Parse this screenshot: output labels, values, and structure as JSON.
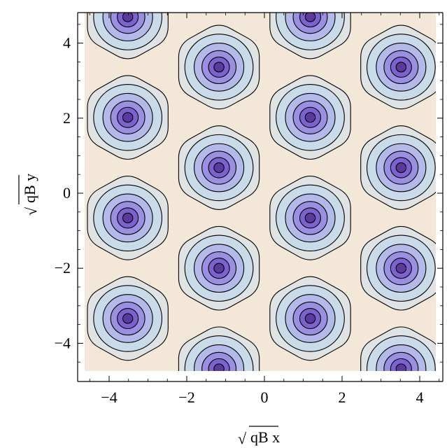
{
  "chart_data": {
    "type": "contour",
    "xlabel": "qB x",
    "ylabel": "qB y",
    "label_prefix_symbol": "√",
    "xlim": [
      -4.6,
      4.6
    ],
    "ylim": [
      -4.8,
      4.8
    ],
    "xticks": [
      -4,
      -2,
      0,
      2,
      4
    ],
    "yticks": [
      -4,
      -2,
      0,
      2,
      4
    ],
    "xtick_labels": [
      "−4",
      "−2",
      "0",
      "2",
      "4"
    ],
    "ytick_labels": [
      "−4",
      "−2",
      "0",
      "2",
      "4"
    ],
    "lattice": "triangular",
    "vortex_spacing_x": 2.35,
    "vortex_spacing_y": 1.33,
    "vortex_centers": [
      {
        "x": -3.52,
        "y": 4.7
      },
      {
        "x": 1.18,
        "y": 4.7
      },
      {
        "x": -1.17,
        "y": 3.36
      },
      {
        "x": 3.52,
        "y": 3.36
      },
      {
        "x": -3.52,
        "y": 2.02
      },
      {
        "x": 1.18,
        "y": 2.02
      },
      {
        "x": -1.17,
        "y": 0.68
      },
      {
        "x": 3.52,
        "y": 0.68
      },
      {
        "x": -3.52,
        "y": -0.66
      },
      {
        "x": 1.18,
        "y": -0.66
      },
      {
        "x": -1.17,
        "y": -2.0
      },
      {
        "x": 3.52,
        "y": -2.0
      },
      {
        "x": -3.52,
        "y": -3.34
      },
      {
        "x": 1.18,
        "y": -3.34
      },
      {
        "x": -1.17,
        "y": -4.68
      },
      {
        "x": 3.52,
        "y": -4.68
      }
    ],
    "contour_radii": [
      1.2,
      0.88,
      0.64,
      0.44,
      0.27,
      0.13
    ],
    "fill_colors": [
      "#f3e8d8",
      "#dfe3e4",
      "#c9dbe9",
      "#b3b9e8",
      "#9a8fe0",
      "#7c62cf",
      "#5b3a9e"
    ],
    "background_color": "#f3e8d8",
    "line_color": "#000000",
    "grid": false
  }
}
